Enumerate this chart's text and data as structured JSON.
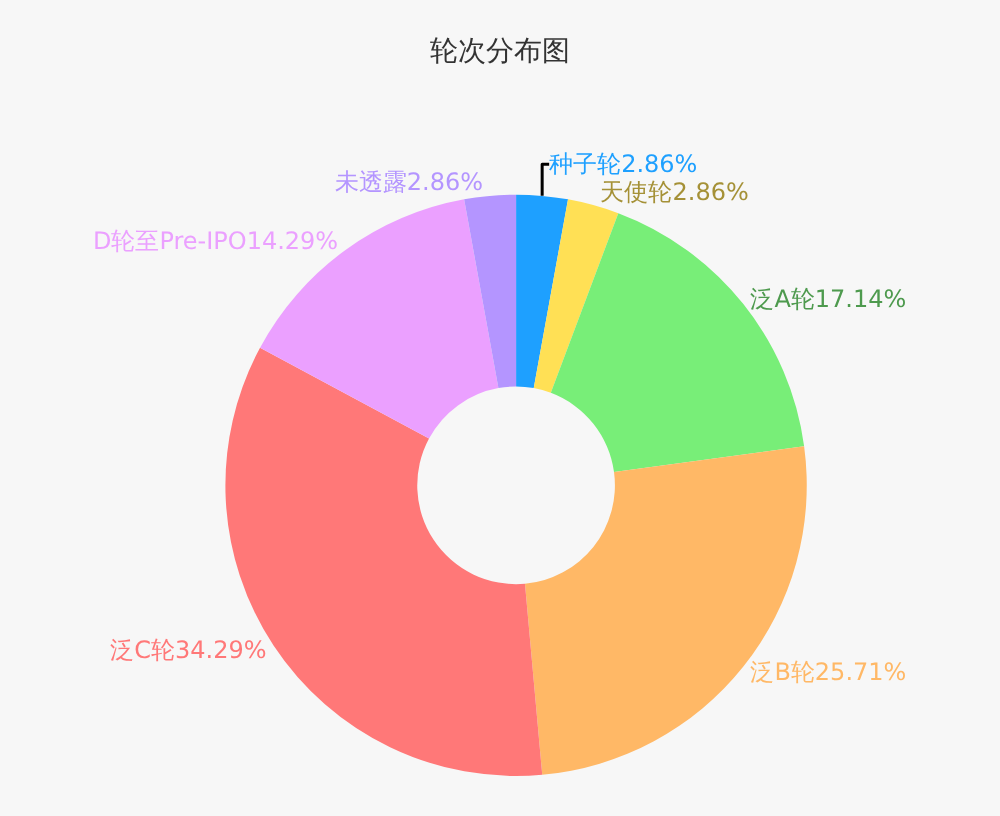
{
  "chart_data": {
    "type": "donut",
    "title": "轮次分布图",
    "categories": [
      "种子轮",
      "天使轮",
      "泛A轮",
      "泛B轮",
      "泛C轮",
      "D轮至Pre-IPO",
      "未透露"
    ],
    "values": [
      2.86,
      2.86,
      17.14,
      25.71,
      34.29,
      14.29,
      2.86
    ],
    "value_labels": [
      "2.86%",
      "2.86%",
      "17.14%",
      "25.71%",
      "34.29%",
      "14.29%",
      "2.86%"
    ],
    "colors": [
      "#1ea0ff",
      "#ffe055",
      "#78ee78",
      "#ffb866",
      "#ff7878",
      "#eba0ff",
      "#b495ff"
    ],
    "legend": false
  }
}
